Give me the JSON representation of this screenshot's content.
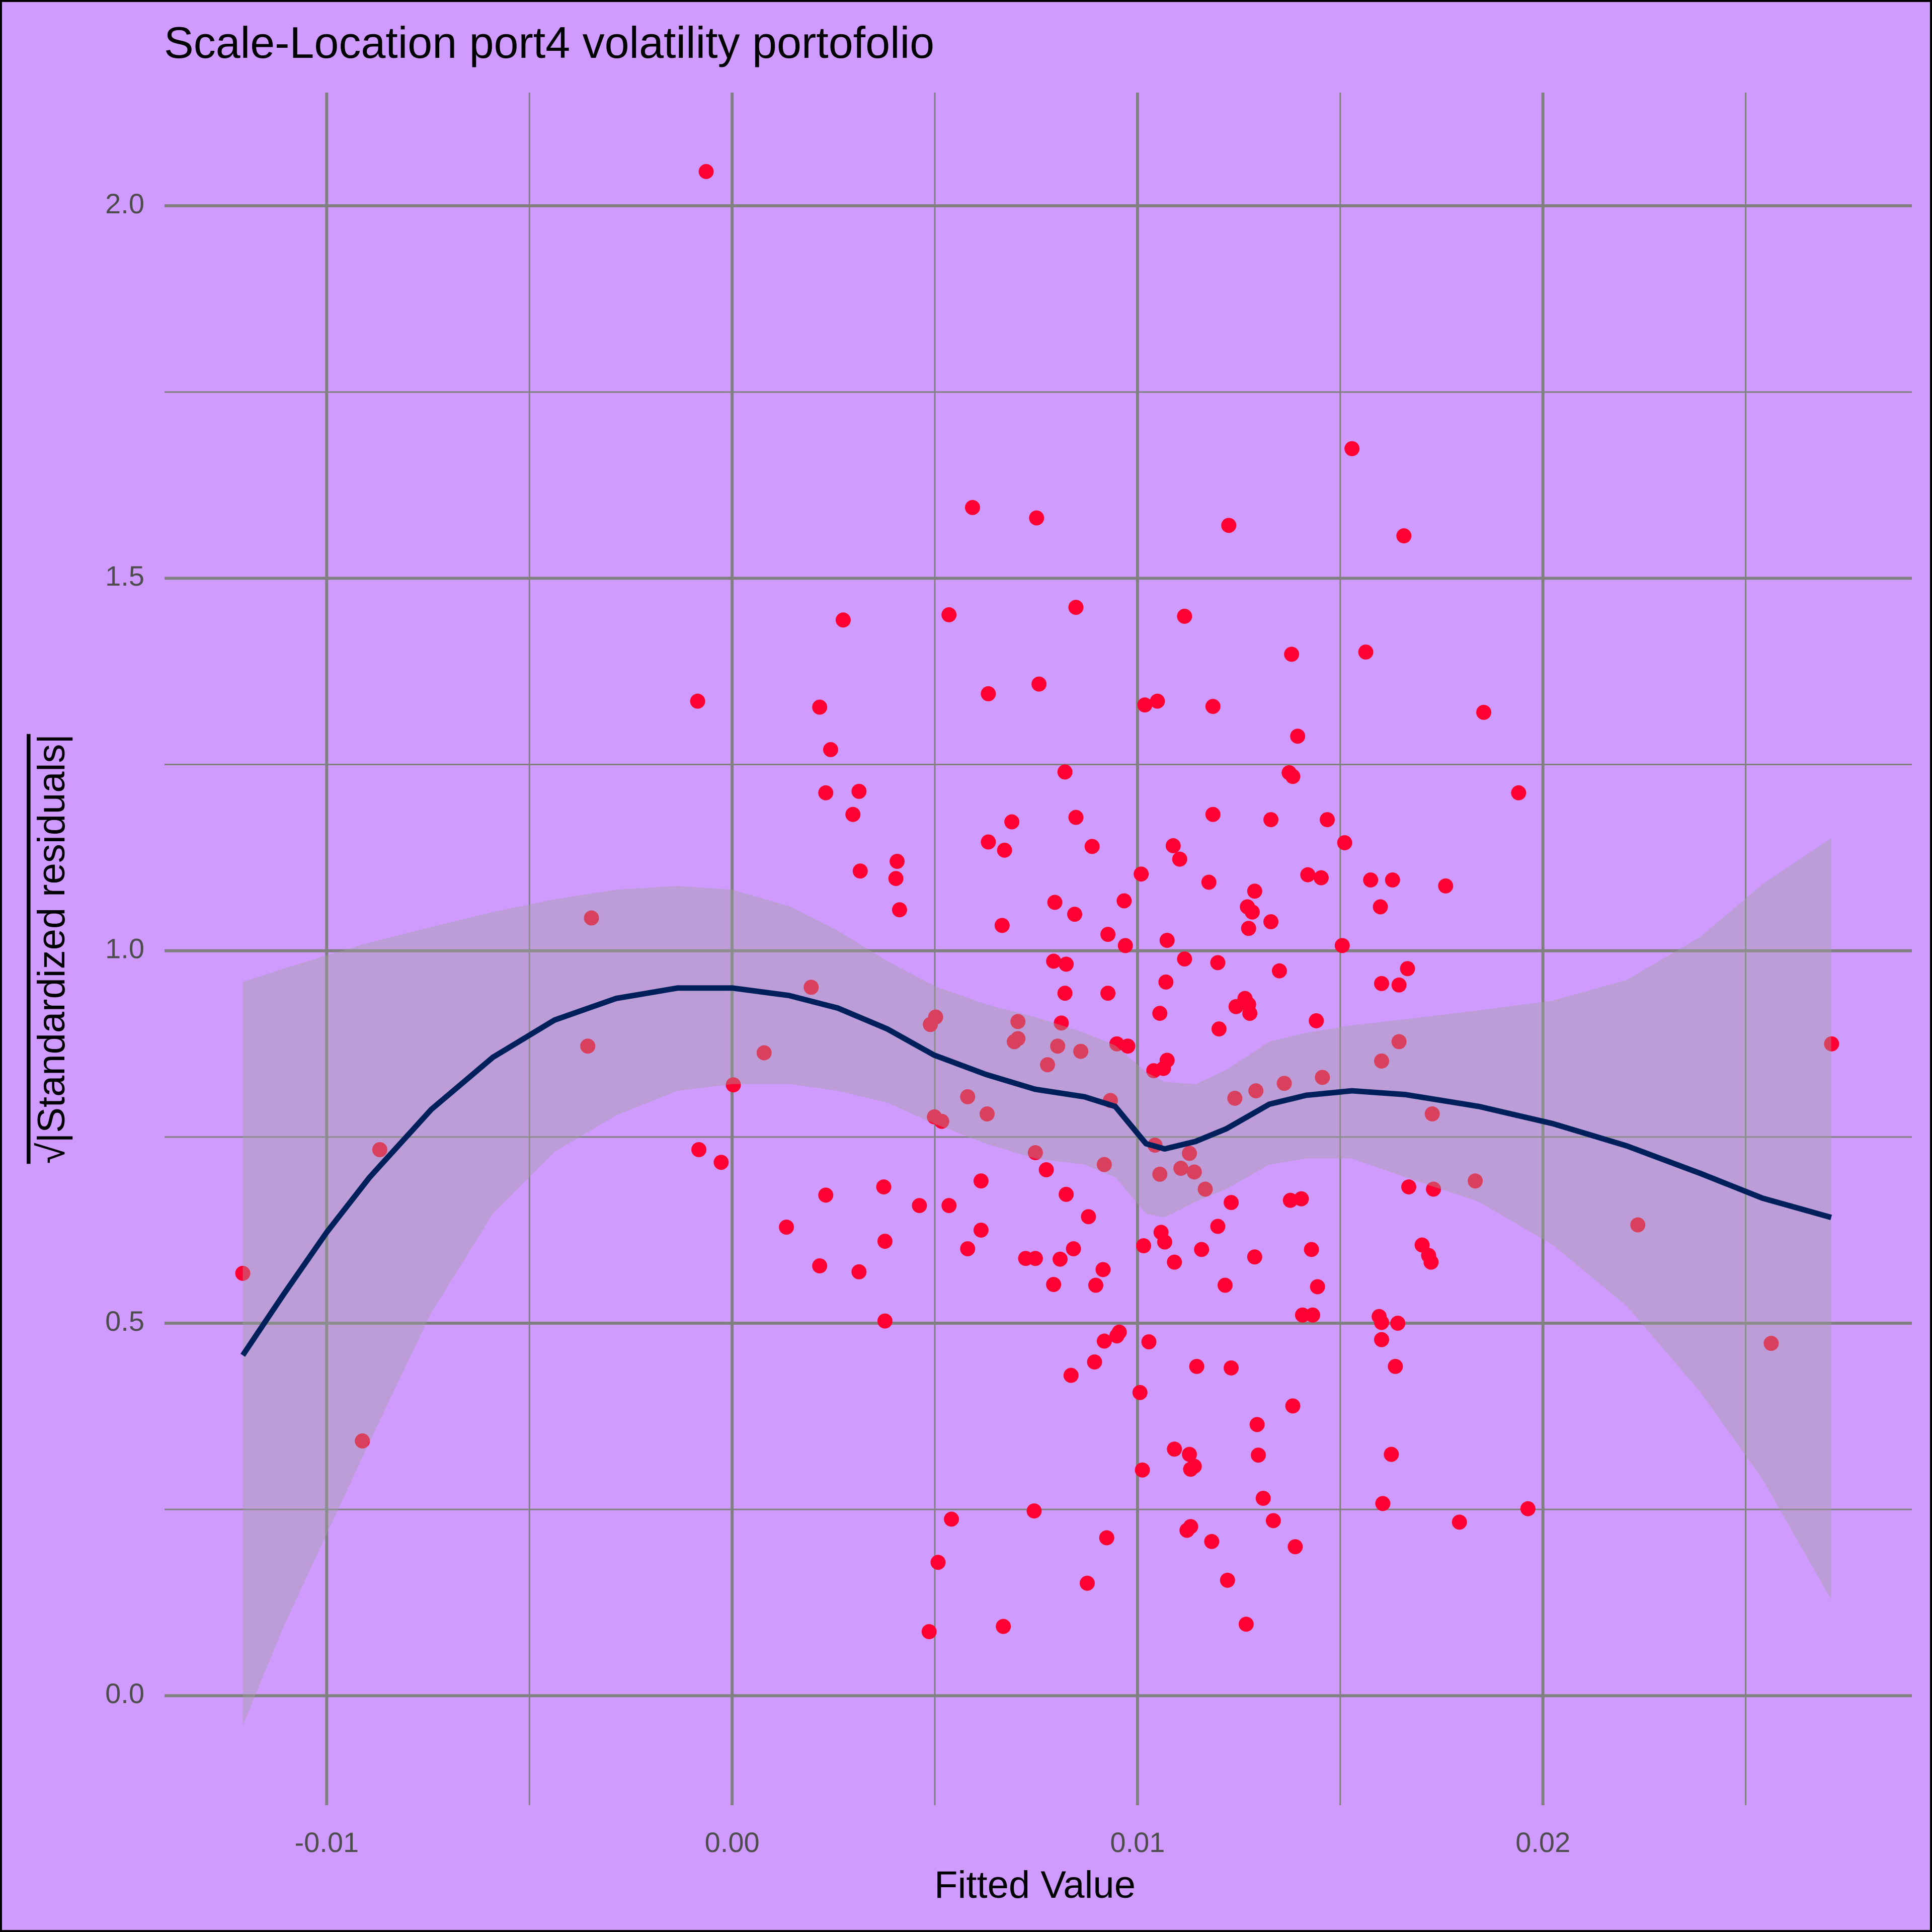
{
  "chart_data": {
    "type": "scatter",
    "title": "Scale-Location port4 volatility portofolio",
    "x_label": "Fitted Value",
    "y_label": "√|Standardized residuals|",
    "xlim": [
      -0.014,
      0.0291
    ],
    "ylim": [
      -0.147,
      2.152
    ],
    "xticks": [
      -0.01,
      {
        "value": 0,
        "label": "0.00"
      },
      0.01,
      0.02
    ],
    "yticks": [
      {
        "value": 0,
        "label": "0.0"
      },
      0.5,
      {
        "value": 1,
        "label": "1.0"
      },
      1.5,
      {
        "value": 2,
        "label": "2.0"
      }
    ],
    "xminorticks": [
      -0.005,
      0.005,
      0.015,
      0.025
    ],
    "yminorticks": [
      0.25,
      0.75,
      1.25,
      1.75
    ],
    "grid": true,
    "background": "#cf9bfe",
    "color": "#ff0033",
    "x": [
      -0.00064,
      0.01529,
      0.00593,
      0.00751,
      0.01225,
      0.01657,
      0.00848,
      0.00535,
      0.01116,
      0.00274,
      0.0138,
      0.01563,
      0.00757,
      0.00632,
      -0.00085,
      0.01049,
      0.01018,
      0.01186,
      0.00216,
      0.01854,
      0.00243,
      0.01395,
      0.00821,
      0.01374,
      0.01383,
      0.00231,
      0.00313,
      0.0194,
      0.00848,
      0.01186,
      0.0069,
      0.01329,
      0.01468,
      0.00298,
      0.00632,
      0.00888,
      0.01088,
      0.01511,
      0.00672,
      0.01104,
      0.00407,
      0.00316,
      0.01009,
      0.0142,
      0.01453,
      0.00404,
      0.01575,
      0.01629,
      0.01176,
      0.0176,
      0.01289,
      0.00796,
      0.00967,
      0.00413,
      0.01271,
      0.01599,
      0.01283,
      0.00845,
      -0.00347,
      0.01329,
      0.00666,
      0.01274,
      0.00927,
      0.01073,
      0.0097,
      0.01505,
      0.01116,
      0.00793,
      0.00824,
      0.01198,
      0.01666,
      0.0135,
      0.0107,
      0.01602,
      0.01645,
      0.00195,
      0.00821,
      0.00927,
      0.01265,
      0.01274,
      0.01243,
      0.01277,
      0.01055,
      0.00502,
      0.01441,
      0.00705,
      0.00489,
      0.00812,
      0.01201,
      0.00705,
      0.00696,
      0.01645,
      0.00949,
      0.02712,
      0.00803,
      0.00976,
      -0.00356,
      0.0086,
      0.00079,
      0.01073,
      0.01602,
      0.00778,
      0.01064,
      0.0104,
      0.01456,
      3e-05,
      0.01362,
      0.01292,
      0.0124,
      0.00581,
      0.00933,
      0.00629,
      0.00499,
      0.00517,
      0.01727,
      -0.00082,
      -0.00869,
      0.00748,
      0.01128,
      0.01043,
      -0.00027,
      0.00918,
      0.01107,
      0.00775,
      0.0114,
      0.01055,
      0.01833,
      0.00614,
      0.00374,
      0.01669,
      0.0173,
      0.01167,
      0.00231,
      0.00824,
      0.01377,
      0.01404,
      0.01231,
      0.00462,
      0.00535,
      0.00879,
      0.02234,
      0.00134,
      0.01198,
      0.00614,
      0.01058,
      0.00377,
      0.01067,
      0.01015,
      0.01702,
      0.00842,
      0.00581,
      0.01158,
      0.01429,
      0.01289,
      0.00724,
      0.00748,
      0.00809,
      0.01718,
      0.01724,
      0.01091,
      0.00216,
      0.00313,
      0.00915,
      -0.01207,
      0.00793,
      0.01216,
      0.00897,
      0.01444,
      0.01596,
      0.01407,
      0.01432,
      0.01602,
      0.00377,
      0.01642,
      0.00955,
      0.00949,
      0.01602,
      0.00918,
      0.01028,
      0.02563,
      0.00894,
      0.01636,
      0.01146,
      0.01231,
      0.00836,
      0.01006,
      0.01383,
      0.01295,
      -0.00912,
      0.01091,
      0.01128,
      0.01298,
      0.01626,
      0.01131,
      0.0114,
      0.01012,
      0.0131,
      0.01605,
      0.00745,
      0.01963,
      0.00541,
      0.01335,
      0.01794,
      0.01131,
      0.01122,
      0.00924,
      0.01183,
      0.01389,
      0.00508,
      0.01222,
      0.00876,
      0.00486,
      0.00669,
      0.01268
    ],
    "values": [
      2.046,
      1.674,
      1.595,
      1.581,
      1.571,
      1.557,
      1.461,
      1.451,
      1.449,
      1.444,
      1.398,
      1.401,
      1.358,
      1.345,
      1.335,
      1.335,
      1.33,
      1.328,
      1.327,
      1.32,
      1.27,
      1.288,
      1.24,
      1.239,
      1.234,
      1.212,
      1.214,
      1.212,
      1.179,
      1.183,
      1.173,
      1.176,
      1.176,
      1.183,
      1.146,
      1.14,
      1.141,
      1.145,
      1.135,
      1.123,
      1.12,
      1.107,
      1.103,
      1.102,
      1.098,
      1.097,
      1.095,
      1.095,
      1.092,
      1.087,
      1.08,
      1.065,
      1.067,
      1.055,
      1.059,
      1.059,
      1.052,
      1.049,
      1.044,
      1.039,
      1.034,
      1.03,
      1.022,
      1.014,
      1.007,
      1.007,
      0.989,
      0.986,
      0.982,
      0.984,
      0.976,
      0.973,
      0.958,
      0.956,
      0.954,
      0.951,
      0.943,
      0.943,
      0.936,
      0.928,
      0.925,
      0.916,
      0.916,
      0.911,
      0.906,
      0.905,
      0.901,
      0.903,
      0.895,
      0.882,
      0.878,
      0.878,
      0.875,
      0.875,
      0.872,
      0.872,
      0.872,
      0.865,
      0.863,
      0.853,
      0.852,
      0.847,
      0.842,
      0.839,
      0.83,
      0.82,
      0.822,
      0.812,
      0.802,
      0.804,
      0.799,
      0.781,
      0.777,
      0.771,
      0.781,
      0.733,
      0.733,
      0.729,
      0.728,
      0.739,
      0.716,
      0.713,
      0.708,
      0.706,
      0.703,
      0.7,
      0.691,
      0.691,
      0.683,
      0.683,
      0.68,
      0.68,
      0.672,
      0.673,
      0.665,
      0.667,
      0.662,
      0.658,
      0.658,
      0.643,
      0.632,
      0.629,
      0.63,
      0.625,
      0.622,
      0.61,
      0.609,
      0.604,
      0.605,
      0.6,
      0.6,
      0.599,
      0.599,
      0.589,
      0.587,
      0.587,
      0.586,
      0.591,
      0.582,
      0.582,
      0.577,
      0.569,
      0.572,
      0.567,
      0.552,
      0.551,
      0.551,
      0.549,
      0.509,
      0.511,
      0.511,
      0.501,
      0.503,
      0.5,
      0.488,
      0.483,
      0.478,
      0.476,
      0.475,
      0.473,
      0.448,
      0.442,
      0.442,
      0.44,
      0.43,
      0.407,
      0.389,
      0.364,
      0.342,
      0.331,
      0.324,
      0.323,
      0.324,
      0.304,
      0.308,
      0.303,
      0.265,
      0.258,
      0.248,
      0.251,
      0.237,
      0.235,
      0.233,
      0.227,
      0.222,
      0.212,
      0.207,
      0.2,
      0.179,
      0.155,
      0.151,
      0.086,
      0.093,
      0.096
    ],
    "smooth": {
      "color": "#00205b",
      "band_color": "#a0a0a0",
      "x": [
        -0.01207,
        -0.01106,
        -0.01,
        -0.00894,
        -0.00742,
        -0.0059,
        -0.00438,
        -0.00286,
        -0.00134,
        0,
        0.0014,
        0.00261,
        0.00383,
        0.00498,
        0.00626,
        0.00748,
        0.00869,
        0.00945,
        0.01021,
        0.01067,
        0.01143,
        0.01219,
        0.01325,
        0.01416,
        0.01529,
        0.0166,
        0.01842,
        0.02024,
        0.02207,
        0.02389,
        0.02541,
        0.02711
      ],
      "values": [
        0.457,
        0.539,
        0.622,
        0.696,
        0.787,
        0.857,
        0.907,
        0.936,
        0.95,
        0.95,
        0.94,
        0.923,
        0.895,
        0.86,
        0.834,
        0.814,
        0.804,
        0.791,
        0.741,
        0.734,
        0.744,
        0.761,
        0.794,
        0.806,
        0.812,
        0.807,
        0.791,
        0.768,
        0.738,
        0.701,
        0.668,
        0.642
      ],
      "upper": [
        0.958,
        0.976,
        0.994,
        1.011,
        1.032,
        1.052,
        1.069,
        1.082,
        1.087,
        1.082,
        1.06,
        1.027,
        0.986,
        0.953,
        0.928,
        0.911,
        0.89,
        0.873,
        0.837,
        0.824,
        0.821,
        0.84,
        0.878,
        0.89,
        0.9,
        0.908,
        0.92,
        0.933,
        0.961,
        1.019,
        1.089,
        1.151
      ],
      "lower": [
        -0.04,
        0.093,
        0.217,
        0.341,
        0.514,
        0.647,
        0.73,
        0.779,
        0.812,
        0.821,
        0.821,
        0.812,
        0.796,
        0.768,
        0.741,
        0.721,
        0.713,
        0.696,
        0.647,
        0.642,
        0.663,
        0.68,
        0.713,
        0.721,
        0.721,
        0.696,
        0.663,
        0.605,
        0.523,
        0.407,
        0.291,
        0.129
      ]
    }
  }
}
